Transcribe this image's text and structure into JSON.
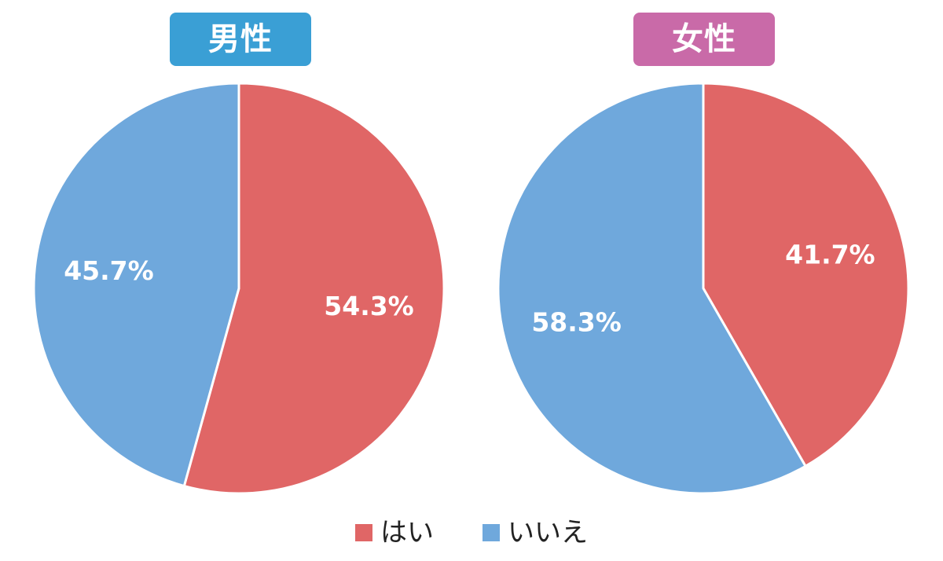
{
  "colors": {
    "yes": "#e06666",
    "no": "#6fa8dc",
    "title_male": "#3a9fd5",
    "title_female": "#c96aa8",
    "separator": "#ffffff"
  },
  "legend": [
    {
      "label": "はい",
      "color": "#e06666"
    },
    {
      "label": "いいえ",
      "color": "#6fa8dc"
    }
  ],
  "chart_data": [
    {
      "type": "pie",
      "title": "男性",
      "title_color": "#3a9fd5",
      "start": "12 o'clock",
      "direction": "clockwise",
      "slices": [
        {
          "label": "はい",
          "value": 54.3,
          "display": "54.3%",
          "color": "#e06666"
        },
        {
          "label": "いいえ",
          "value": 45.7,
          "display": "45.7%",
          "color": "#6fa8dc"
        }
      ]
    },
    {
      "type": "pie",
      "title": "女性",
      "title_color": "#c96aa8",
      "start": "12 o'clock",
      "direction": "clockwise",
      "slices": [
        {
          "label": "はい",
          "value": 41.7,
          "display": "41.7%",
          "color": "#e06666"
        },
        {
          "label": "いいえ",
          "value": 58.3,
          "display": "58.3%",
          "color": "#6fa8dc"
        }
      ]
    }
  ]
}
